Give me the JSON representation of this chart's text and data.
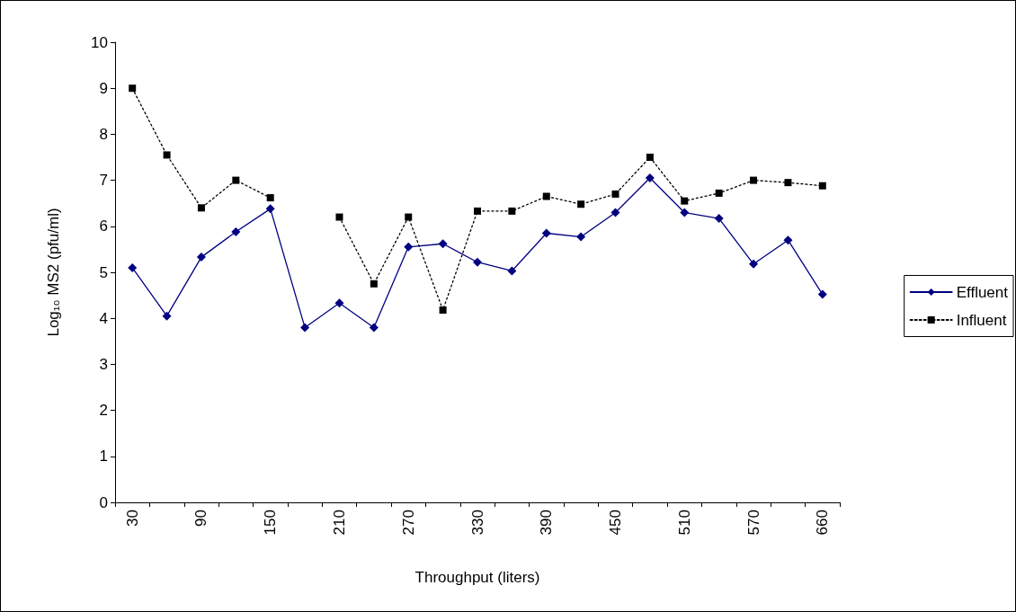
{
  "chart_data": {
    "type": "line",
    "xlabel": "Throughput (liters)",
    "ylabel": "Log₁₀ MS2 (pfu/ml)",
    "categories": [
      "30",
      null,
      "90",
      null,
      "150",
      null,
      "210",
      null,
      "270",
      null,
      "330",
      null,
      "390",
      null,
      "450",
      null,
      "510",
      null,
      "570",
      null,
      "660"
    ],
    "ylim": [
      0,
      10
    ],
    "yticks": [
      0,
      1,
      2,
      3,
      4,
      5,
      6,
      7,
      8,
      9,
      10
    ],
    "grid": false,
    "legend": "right",
    "series": [
      {
        "name": "Effluent",
        "color": "#000080",
        "marker": "diamond",
        "line_style": "solid",
        "values": [
          5.1,
          4.05,
          5.33,
          5.88,
          6.38,
          3.8,
          4.33,
          3.8,
          5.55,
          5.62,
          5.22,
          5.03,
          5.85,
          5.77,
          6.3,
          7.05,
          6.3,
          6.17,
          5.18,
          5.7,
          4.52
        ]
      },
      {
        "name": "Influent",
        "color": "#000000",
        "marker": "square",
        "line_style": "dotted",
        "values": [
          9.0,
          7.55,
          6.4,
          7.0,
          6.62,
          null,
          6.2,
          4.75,
          6.2,
          4.18,
          6.33,
          6.33,
          6.65,
          6.48,
          6.7,
          7.5,
          6.55,
          6.72,
          7.0,
          6.95,
          6.88
        ]
      }
    ]
  }
}
